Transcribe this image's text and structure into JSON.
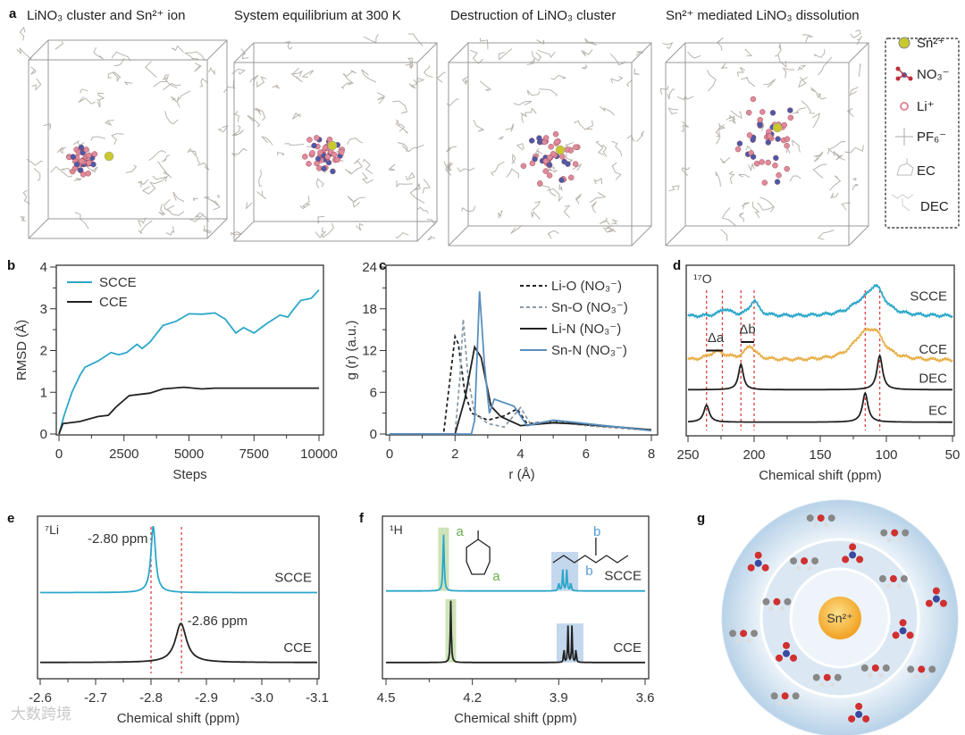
{
  "panel_labels": [
    "a",
    "b",
    "c",
    "d",
    "e",
    "f",
    "g"
  ],
  "panel_a": {
    "titles": [
      "LiNO₃ cluster and Sn²⁺ ion",
      "System equilibrium at 300 K",
      "Destruction of LiNO₃ cluster",
      "Sn²⁺ mediated LiNO₃ dissolution"
    ],
    "legend": [
      "Sn²⁺",
      "NO₃⁻",
      "Li⁺",
      "PF₆⁻",
      "EC",
      "DEC"
    ],
    "colors": {
      "sn": "#c9c92e",
      "li": "#e08a9a",
      "n": "#4a5aa8",
      "o": "#c0303a",
      "solvent": "#b9b3ad"
    }
  },
  "panel_g": {
    "center_label": "Sn²⁺"
  },
  "watermark": "大数跨境",
  "chart_data": [
    {
      "type": "line",
      "id": "b",
      "xlabel": "Steps",
      "ylabel": "RMSD (Å)",
      "xlim": [
        0,
        10000
      ],
      "ylim": [
        0,
        4
      ],
      "xticks": [
        "0",
        "2500",
        "5000",
        "7500",
        "10000"
      ],
      "yticks": [
        "0",
        "1",
        "2",
        "3",
        "4"
      ],
      "legend_position": "top-left",
      "series": [
        {
          "name": "SCCE",
          "color": "#2ba7c9",
          "dash": "",
          "points": [
            [
              0,
              0
            ],
            [
              200,
              0.45
            ],
            [
              500,
              1.0
            ],
            [
              800,
              1.4
            ],
            [
              1000,
              1.6
            ],
            [
              1500,
              1.75
            ],
            [
              2000,
              1.95
            ],
            [
              2300,
              1.9
            ],
            [
              2600,
              1.95
            ],
            [
              3000,
              2.15
            ],
            [
              3200,
              2.05
            ],
            [
              3500,
              2.2
            ],
            [
              4000,
              2.6
            ],
            [
              4500,
              2.7
            ],
            [
              5000,
              2.88
            ],
            [
              5500,
              2.87
            ],
            [
              6000,
              2.9
            ],
            [
              6400,
              2.75
            ],
            [
              6800,
              2.42
            ],
            [
              7100,
              2.55
            ],
            [
              7500,
              2.42
            ],
            [
              8000,
              2.65
            ],
            [
              8500,
              2.85
            ],
            [
              8800,
              2.8
            ],
            [
              9000,
              2.97
            ],
            [
              9300,
              3.2
            ],
            [
              9700,
              3.25
            ],
            [
              10000,
              3.45
            ]
          ]
        },
        {
          "name": "CCE",
          "color": "#222222",
          "dash": "",
          "points": [
            [
              0,
              0
            ],
            [
              150,
              0.25
            ],
            [
              800,
              0.3
            ],
            [
              1500,
              0.42
            ],
            [
              1900,
              0.45
            ],
            [
              2200,
              0.65
            ],
            [
              2700,
              0.92
            ],
            [
              3500,
              0.98
            ],
            [
              4000,
              1.08
            ],
            [
              4800,
              1.12
            ],
            [
              5500,
              1.08
            ],
            [
              6000,
              1.1
            ],
            [
              8000,
              1.1
            ],
            [
              10000,
              1.1
            ]
          ]
        }
      ]
    },
    {
      "type": "line",
      "id": "c",
      "xlabel": "r (Å)",
      "ylabel": "g (r) (a.u.)",
      "xlim": [
        0,
        8
      ],
      "ylim": [
        0,
        24
      ],
      "xticks": [
        "0",
        "2",
        "4",
        "6",
        "8"
      ],
      "yticks": [
        "0",
        "6",
        "12",
        "18",
        "24"
      ],
      "legend_position": "top-right",
      "series": [
        {
          "name": "Li-O (NO₃⁻)",
          "color": "#222222",
          "dash": "4,3",
          "points": [
            [
              0,
              0
            ],
            [
              1.65,
              0
            ],
            [
              1.8,
              6
            ],
            [
              2.0,
              14
            ],
            [
              2.1,
              13
            ],
            [
              2.3,
              6
            ],
            [
              2.5,
              3
            ],
            [
              3,
              2
            ],
            [
              3.5,
              2.6
            ],
            [
              3.9,
              3.6
            ],
            [
              4.2,
              1.5
            ],
            [
              5,
              1.8
            ],
            [
              6,
              1.3
            ],
            [
              7,
              1
            ],
            [
              8,
              0.5
            ]
          ]
        },
        {
          "name": "Sn-O (NO₃⁻)",
          "color": "#8a9aa8",
          "dash": "4,3",
          "points": [
            [
              0,
              0
            ],
            [
              2.0,
              0
            ],
            [
              2.15,
              8
            ],
            [
              2.25,
              16.5
            ],
            [
              2.4,
              8
            ],
            [
              2.6,
              3
            ],
            [
              3,
              1.5
            ],
            [
              3.5,
              1
            ],
            [
              4,
              3.8
            ],
            [
              4.3,
              1.5
            ],
            [
              5,
              1.8
            ],
            [
              6,
              1.2
            ],
            [
              8,
              0.5
            ]
          ]
        },
        {
          "name": "Li-N (NO₃⁻)",
          "color": "#222222",
          "dash": "",
          "points": [
            [
              0,
              0
            ],
            [
              2,
              0
            ],
            [
              2.3,
              5
            ],
            [
              2.6,
              12.5
            ],
            [
              2.8,
              11
            ],
            [
              3.1,
              4
            ],
            [
              3.4,
              2.5
            ],
            [
              4,
              1.2
            ],
            [
              5,
              1.6
            ],
            [
              6,
              1.4
            ],
            [
              8,
              0.6
            ]
          ]
        },
        {
          "name": "Sn-N (NO₃⁻)",
          "color": "#5a8fbf",
          "dash": "",
          "points": [
            [
              0,
              0
            ],
            [
              2.5,
              0
            ],
            [
              2.6,
              2
            ],
            [
              2.75,
              20.5
            ],
            [
              2.9,
              10
            ],
            [
              3.05,
              3
            ],
            [
              3.2,
              5
            ],
            [
              3.5,
              4.5
            ],
            [
              3.8,
              4
            ],
            [
              4.2,
              1.2
            ],
            [
              5,
              2
            ],
            [
              6,
              1.5
            ],
            [
              8,
              0.5
            ]
          ]
        }
      ]
    },
    {
      "type": "line",
      "id": "d",
      "nucleus": "¹⁷O",
      "xlabel": "Chemical shift (ppm)",
      "xlim": [
        250,
        50
      ],
      "ylim": [
        0,
        10
      ],
      "xticks": [
        "250",
        "200",
        "150",
        "100",
        "50"
      ],
      "reference_lines_ppm": [
        236,
        224,
        210,
        200,
        116,
        105
      ],
      "annotations": [
        "Δa",
        "Δb"
      ],
      "series": [
        {
          "name": "SCCE",
          "color": "#2ba7c9",
          "offset": 7.0,
          "peaks": [
            [
              222,
              0.4,
              5
            ],
            [
              200,
              0.9,
              4
            ],
            [
              120,
              0.5,
              10
            ],
            [
              108,
              1.6,
              8
            ]
          ]
        },
        {
          "name": "CCE",
          "color": "#e8b04a",
          "offset": 4.4,
          "peaks": [
            [
              228,
              0.5,
              8
            ],
            [
              203,
              0.8,
              5
            ],
            [
              118,
              1.2,
              10
            ],
            [
              108,
              1.2,
              8
            ]
          ]
        },
        {
          "name": "DEC",
          "color": "#222222",
          "offset": 2.7,
          "peaks": [
            [
              210,
              1.5,
              2.2
            ],
            [
              105,
              2.0,
              2.5
            ]
          ]
        },
        {
          "name": "EC",
          "color": "#222222",
          "offset": 0.8,
          "peaks": [
            [
              236,
              1.0,
              2.5
            ],
            [
              116,
              1.7,
              2.5
            ]
          ]
        }
      ]
    },
    {
      "type": "line",
      "id": "e",
      "nucleus": "⁷Li",
      "xlabel": "Chemical shift (ppm)",
      "xlim": [
        -2.6,
        -3.1
      ],
      "ylim": [
        0,
        10
      ],
      "xticks": [
        "-2.6",
        "-2.7",
        "-2.8",
        "-2.9",
        "-3.0",
        "-3.1"
      ],
      "annotations": [
        "-2.80 ppm",
        "-2.86 ppm"
      ],
      "reference_lines_ppm": [
        -2.8,
        -2.855
      ],
      "series": [
        {
          "name": "SCCE",
          "color": "#2ba7c9",
          "offset": 5.3,
          "peaks": [
            [
              -2.804,
              4.1,
              0.005
            ]
          ]
        },
        {
          "name": "CCE",
          "color": "#222222",
          "offset": 1.0,
          "peaks": [
            [
              -2.854,
              2.4,
              0.012
            ]
          ]
        }
      ]
    },
    {
      "type": "line",
      "id": "f",
      "nucleus": "¹H",
      "xlabel": "Chemical shift (ppm)",
      "xlim": [
        4.5,
        3.6
      ],
      "ylim": [
        0,
        10
      ],
      "xticks": [
        "4.5",
        "4.2",
        "3.9",
        "3.6"
      ],
      "annotations": [
        "a",
        "a",
        "b"
      ],
      "series": [
        {
          "name": "SCCE",
          "color": "#2ba7c9",
          "offset": 5.4,
          "peaks": [
            [
              4.3,
              3.5,
              0.0025
            ],
            [
              3.9,
              0.5,
              0.002
            ],
            [
              3.886,
              1.3,
              0.002
            ],
            [
              3.872,
              1.3,
              0.002
            ],
            [
              3.858,
              0.5,
              0.002
            ]
          ]
        },
        {
          "name": "CCE",
          "color": "#222222",
          "offset": 1.0,
          "peaks": [
            [
              4.275,
              3.8,
              0.002
            ],
            [
              3.882,
              0.9,
              0.0015
            ],
            [
              3.868,
              2.3,
              0.0015
            ],
            [
              3.854,
              2.3,
              0.0015
            ],
            [
              3.84,
              0.9,
              0.0015
            ]
          ]
        }
      ]
    }
  ]
}
